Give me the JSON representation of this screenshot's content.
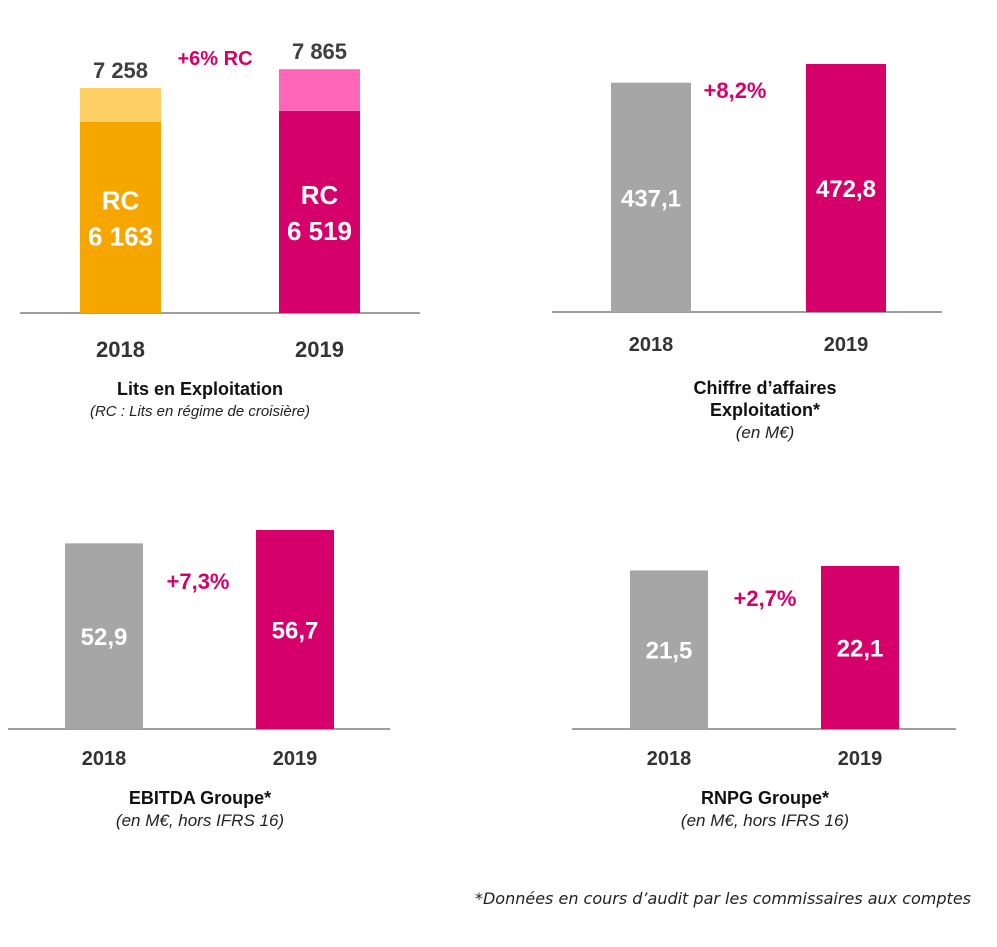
{
  "colors": {
    "orange": "#f5a700",
    "orange_light": "#fdd066",
    "magenta": "#d6006a",
    "pink_light": "#ff66b8",
    "grey": "#a6a6a6",
    "dark_text": "#404040",
    "axis": "#7f7f7f"
  },
  "chart_data": [
    {
      "type": "bar",
      "stacked": true,
      "categories": [
        "2018",
        "2019"
      ],
      "series": [
        {
          "name": "RC",
          "values": [
            6163,
            6519
          ],
          "labels": [
            "6 163",
            "6 519"
          ]
        },
        {
          "name": "",
          "values": [
            1095,
            1346
          ]
        }
      ],
      "totals": [
        7258,
        7865
      ],
      "total_labels": [
        "7 258",
        "7 865"
      ],
      "annotation": "+6% RC",
      "title": "Lits en Exploitation",
      "subtitle": "(RC : Lits en régime de croisière)"
    },
    {
      "type": "bar",
      "categories": [
        "2018",
        "2019"
      ],
      "values": [
        437.1,
        472.8
      ],
      "value_labels": [
        "437,1",
        "472,8"
      ],
      "annotation": "+8,2%",
      "title_lines": [
        "Chiffre d’affaires",
        "Exploitation*"
      ],
      "subtitle": "(en M€)"
    },
    {
      "type": "bar",
      "categories": [
        "2018",
        "2019"
      ],
      "values": [
        52.9,
        56.7
      ],
      "value_labels": [
        "52,9",
        "56,7"
      ],
      "annotation": "+7,3%",
      "title": "EBITDA Groupe*",
      "subtitle": "(en M€, hors IFRS 16)"
    },
    {
      "type": "bar",
      "categories": [
        "2018",
        "2019"
      ],
      "values": [
        21.5,
        22.1
      ],
      "value_labels": [
        "21,5",
        "22,1"
      ],
      "annotation": "+2,7%",
      "title": "RNPG Groupe*",
      "subtitle": "(en M€, hors IFRS 16)"
    }
  ],
  "footnote": "*Données en cours d’audit par les commissaires aux comptes"
}
